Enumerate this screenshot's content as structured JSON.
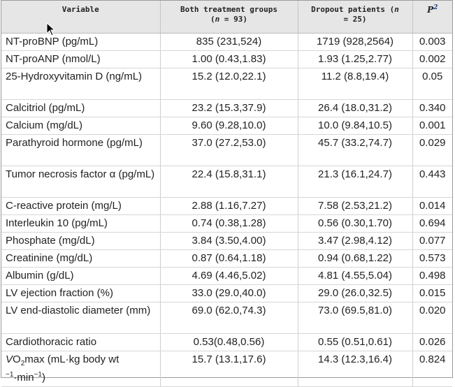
{
  "headers": {
    "variable": "Variable",
    "both": "Both treatment groups",
    "both_n": "(n = 93)",
    "dropout": "Dropout patients (n",
    "dropout_n": "= 25)",
    "p": "P",
    "p_sup": "2"
  },
  "rows": [
    {
      "variable": "NT-proBNP (pg/mL)",
      "both": "835 (231,524)",
      "dropout": "1719 (928,2564)",
      "p": "0.003"
    },
    {
      "variable": "NT-proANP (nmol/L)",
      "both": "1.00 (0.43,1.83)",
      "dropout": "1.93 (1.25,2.77)",
      "p": "0.002"
    },
    {
      "variable": "25-Hydroxyvitamin D (ng/mL)",
      "both": "15.2 (12.0,22.1)",
      "dropout": "11.2 (8.8,19.4)",
      "p": "0.05"
    },
    {
      "variable": "Calcitriol (pg/mL)",
      "both": "23.2 (15.3,37.9)",
      "dropout": "26.4 (18.0,31.2)",
      "p": "0.340"
    },
    {
      "variable": "Calcium (mg/dL)",
      "both": "9.60 (9.28,10.0)",
      "dropout": "10.0 (9.84,10.5)",
      "p": "0.001"
    },
    {
      "variable": "Parathyroid hormone (pg/mL)",
      "both": "37.0 (27.2,53.0)",
      "dropout": "45.7 (33.2,74.7)",
      "p": "0.029"
    },
    {
      "variable": "Tumor necrosis factor α (pg/mL)",
      "both": "22.4 (15.8,31.1)",
      "dropout": "21.3 (16.1,24.7)",
      "p": "0.443"
    },
    {
      "variable": "C-reactive protein (mg/L)",
      "both": "2.88 (1.16,7.27)",
      "dropout": "7.58 (2.53,21.2)",
      "p": "0.014"
    },
    {
      "variable": "Interleukin 10 (pg/mL)",
      "both": "0.74 (0.38,1.28)",
      "dropout": "0.56 (0.30,1.70)",
      "p": "0.694"
    },
    {
      "variable": "Phosphate (mg/dL)",
      "both": "3.84 (3.50,4.00)",
      "dropout": "3.47 (2.98,4.12)",
      "p": "0.077"
    },
    {
      "variable": "Creatinine (mg/dL)",
      "both": "0.87 (0.64,1.18)",
      "dropout": "0.94 (0.68,1.22)",
      "p": "0.573"
    },
    {
      "variable": "Albumin (g/dL)",
      "both": "4.69 (4.46,5.02)",
      "dropout": "4.81 (4.55,5.04)",
      "p": "0.498"
    },
    {
      "variable": "LV ejection fraction (%)",
      "both": "33.0 (29.0,40.0)",
      "dropout": "29.0 (26.0,32.5)",
      "p": "0.015"
    },
    {
      "variable": "LV end-diastolic diameter (mm)",
      "both": "69.0 (62.0,74.3)",
      "dropout": "73.0 (69.5,81.0)",
      "p": "0.020"
    },
    {
      "variable": "Cardiothoracic ratio",
      "both": "0.53(0.48,0.56)",
      "dropout": "0.55 (0.51,0.61)",
      "p": "0.026"
    }
  ],
  "last_row": {
    "v": "V",
    "o2": "O",
    "two": "2",
    "rest": "max (mL·kg body wt",
    "line2a": "−1",
    "line2b": "·min",
    "line2c": "−1",
    "line2d": ")",
    "both": "15.7 (13.1,17.6)",
    "dropout": "14.3 (12.3,16.4)",
    "p": "0.824"
  }
}
